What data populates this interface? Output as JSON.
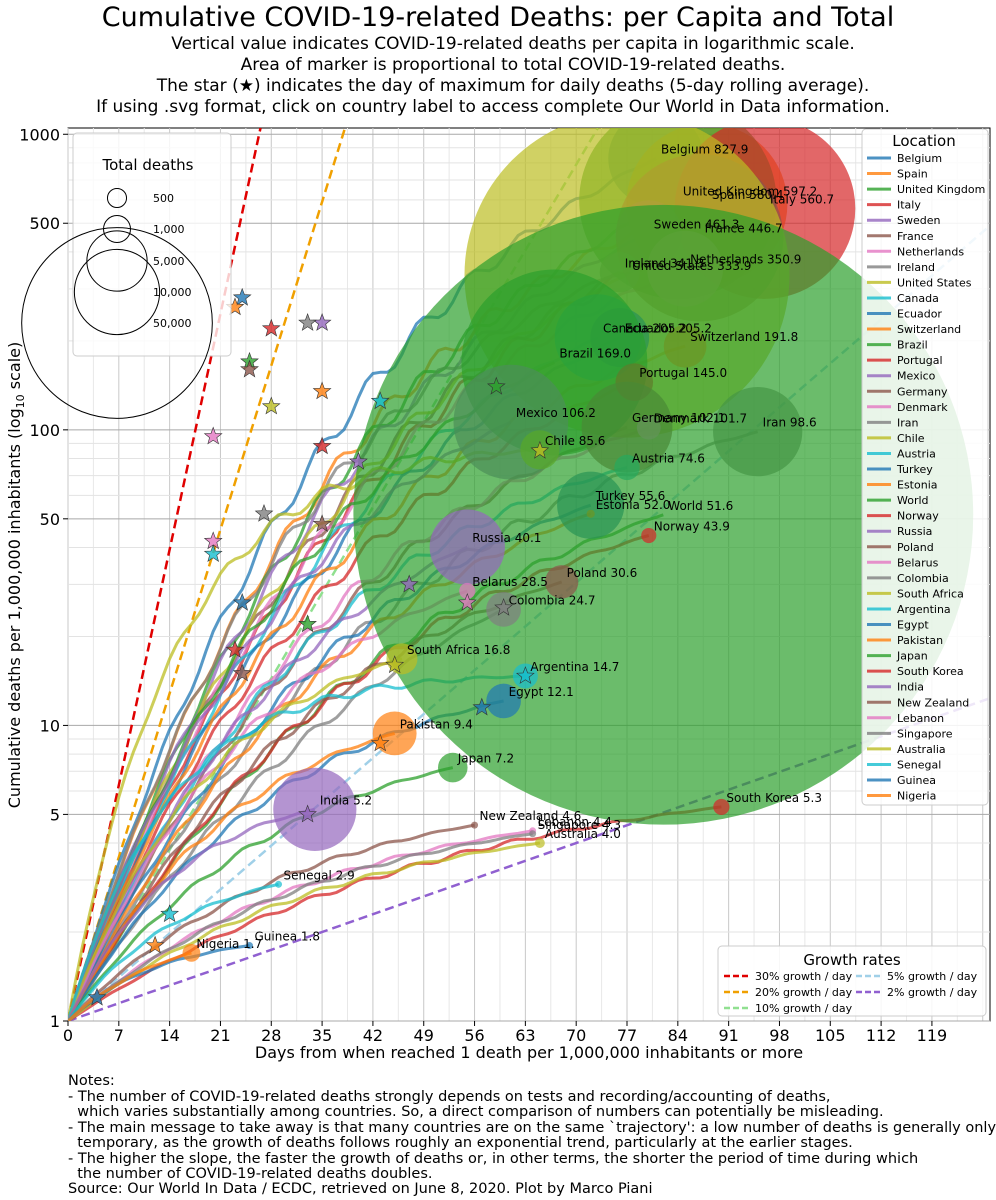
{
  "chart_data": {
    "type": "line",
    "title": "Cumulative COVID-19-related Deaths: per Capita and Total",
    "subtitle_lines": [
      "Vertical value indicates COVID-19-related deaths per capita in logarithmic scale.",
      "Area of marker is proportional to total COVID-19-related deaths.",
      "The star (★) indicates the day of maximum for daily deaths (5-day rolling average).",
      "If using .svg format, click on country label to access complete Our World in Data information."
    ],
    "xlabel": "Days from when reached 1 death per 1,000,000 inhabitants or more",
    "ylabel": "Cumulative deaths per 1,000,000 inhabitants (log",
    "ylabel_sub": "10",
    "ylabel_tail": " scale)",
    "yscale": "log",
    "xlim": [
      0,
      127
    ],
    "ylim": [
      1,
      1050
    ],
    "x_ticks": [
      0,
      7,
      14,
      21,
      28,
      35,
      42,
      49,
      56,
      63,
      70,
      77,
      84,
      91,
      98,
      105,
      112,
      119
    ],
    "y_ticks": [
      1,
      5,
      10,
      50,
      100,
      500,
      1000
    ],
    "grid": true,
    "size_legend": {
      "title": "Total deaths",
      "entries": [
        {
          "label": "500",
          "value": 500
        },
        {
          "label": "1,000",
          "value": 1000
        },
        {
          "label": "5,000",
          "value": 5000
        },
        {
          "label": "10,000",
          "value": 10000
        },
        {
          "label": "50,000",
          "value": 50000
        }
      ]
    },
    "location_legend_title": "Location",
    "series": [
      {
        "name": "Belgium",
        "color": "#1f77b4",
        "end": [
          81,
          827.9
        ],
        "total": 9500,
        "star": [
          24,
          280
        ],
        "label": "Belgium 827.9"
      },
      {
        "name": "Spain",
        "color": "#ff7f0e",
        "end": [
          88,
          580.4
        ],
        "total": 27000,
        "star": [
          23,
          260
        ],
        "label": "Spain 580.4"
      },
      {
        "name": "United Kingdom",
        "color": "#2ca02c",
        "end": [
          84,
          597.2
        ],
        "total": 40500,
        "star": [
          25,
          170
        ],
        "label": "United Kingdom 597.2"
      },
      {
        "name": "Italy",
        "color": "#d62728",
        "end": [
          96,
          560.7
        ],
        "total": 34000,
        "star": [
          28,
          220
        ],
        "label": "Italy 560.7"
      },
      {
        "name": "Sweden",
        "color": "#9467bd",
        "end": [
          80,
          461.3
        ],
        "total": 4600,
        "star": [
          35,
          230
        ],
        "label": "Sweden 461.3"
      },
      {
        "name": "France",
        "color": "#8c564b",
        "end": [
          87,
          446.7
        ],
        "total": 29200,
        "star": [
          25,
          160
        ],
        "label": "France 446.7"
      },
      {
        "name": "Netherlands",
        "color": "#e377c2",
        "end": [
          85,
          350.9
        ],
        "total": 6000,
        "star": [
          20,
          95
        ],
        "label": "Netherlands 350.9"
      },
      {
        "name": "Ireland",
        "color": "#7f7f7f",
        "end": [
          76,
          341.3
        ],
        "total": 1680,
        "star": [
          33,
          230
        ],
        "label": "Ireland 341.3"
      },
      {
        "name": "United States",
        "color": "#bcbd22",
        "end": [
          77,
          333.9
        ],
        "total": 110000,
        "star": [
          28,
          120
        ],
        "label": "United States 333.9"
      },
      {
        "name": "Canada",
        "color": "#17becf",
        "end": [
          73,
          205.2
        ],
        "total": 7800,
        "star": [
          43,
          125
        ],
        "label": "Canada 205.2"
      },
      {
        "name": "Ecuador",
        "color": "#1f77b4",
        "end": [
          76,
          205.2
        ],
        "total": 3600,
        "star": [
          0,
          0
        ],
        "label": "Ecuador 205.2"
      },
      {
        "name": "Switzerland",
        "color": "#ff7f0e",
        "end": [
          85,
          191.8
        ],
        "total": 1900,
        "star": [
          35,
          135
        ],
        "label": "Switzerland 191.8"
      },
      {
        "name": "Brazil",
        "color": "#2ca02c",
        "end": [
          67,
          169.0
        ],
        "total": 36000,
        "star": [
          59,
          140
        ],
        "label": "Brazil 169.0"
      },
      {
        "name": "Portugal",
        "color": "#d62728",
        "end": [
          78,
          145.0
        ],
        "total": 1470,
        "star": [
          35,
          88
        ],
        "label": "Portugal 145.0"
      },
      {
        "name": "Mexico",
        "color": "#9467bd",
        "end": [
          61,
          106.2
        ],
        "total": 13700,
        "star": [
          40,
          78
        ],
        "label": "Mexico 106.2"
      },
      {
        "name": "Germany",
        "color": "#8c564b",
        "end": [
          77,
          102.1
        ],
        "total": 8600,
        "star": [
          35,
          48
        ],
        "label": "Germany 102.1"
      },
      {
        "name": "Denmark",
        "color": "#e377c2",
        "end": [
          80,
          101.7
        ],
        "total": 590,
        "star": [
          20,
          42
        ],
        "label": "Denmark 101.7"
      },
      {
        "name": "Iran",
        "color": "#7f7f7f",
        "end": [
          95,
          98.6
        ],
        "total": 8300,
        "star": [
          27,
          52
        ],
        "label": "Iran 98.6"
      },
      {
        "name": "Chile",
        "color": "#bcbd22",
        "end": [
          65,
          85.6
        ],
        "total": 1600,
        "star": [
          65,
          85
        ],
        "label": "Chile 85.6"
      },
      {
        "name": "Austria",
        "color": "#17becf",
        "end": [
          77,
          74.6
        ],
        "total": 670,
        "star": [
          20,
          38
        ],
        "label": "Austria 74.6"
      },
      {
        "name": "Turkey",
        "color": "#1f77b4",
        "end": [
          72,
          55.6
        ],
        "total": 4700,
        "star": [
          24,
          26
        ],
        "label": "Turkey 55.6"
      },
      {
        "name": "Estonia",
        "color": "#ff7f0e",
        "end": [
          72,
          52.0
        ],
        "total": 69,
        "star": [
          0,
          0
        ],
        "label": "Estonia 52.0"
      },
      {
        "name": "World",
        "color": "#2ca02c",
        "end": [
          82,
          51.6
        ],
        "total": 400000,
        "star": [
          33,
          22
        ],
        "label": "World 51.6"
      },
      {
        "name": "Norway",
        "color": "#d62728",
        "end": [
          80,
          43.9
        ],
        "total": 238,
        "star": [
          23,
          18
        ],
        "label": "Norway 43.9"
      },
      {
        "name": "Russia",
        "color": "#9467bd",
        "end": [
          55,
          40.1
        ],
        "total": 5900,
        "star": [
          47,
          30
        ],
        "label": "Russia 40.1"
      },
      {
        "name": "Poland",
        "color": "#8c564b",
        "end": [
          68,
          30.6
        ],
        "total": 1160,
        "star": [
          24,
          15
        ],
        "label": "Poland 30.6"
      },
      {
        "name": "Belarus",
        "color": "#e377c2",
        "end": [
          55,
          28.5
        ],
        "total": 270,
        "star": [
          55,
          26
        ],
        "label": "Belarus 28.5"
      },
      {
        "name": "Colombia",
        "color": "#7f7f7f",
        "end": [
          60,
          24.7
        ],
        "total": 1260,
        "star": [
          60,
          25
        ],
        "label": "Colombia 24.7"
      },
      {
        "name": "South Africa",
        "color": "#bcbd22",
        "end": [
          46,
          16.8
        ],
        "total": 1000,
        "star": [
          45,
          16
        ],
        "label": "South Africa 16.8"
      },
      {
        "name": "Argentina",
        "color": "#17becf",
        "end": [
          63,
          14.7
        ],
        "total": 650,
        "star": [
          63,
          14.7
        ],
        "label": "Argentina 14.7"
      },
      {
        "name": "Egypt",
        "color": "#1f77b4",
        "end": [
          60,
          12.1
        ],
        "total": 1250,
        "star": [
          57,
          11.5
        ],
        "label": "Egypt 12.1"
      },
      {
        "name": "Pakistan",
        "color": "#ff7f0e",
        "end": [
          45,
          9.4
        ],
        "total": 2000,
        "star": [
          43,
          8.7
        ],
        "label": "Pakistan 9.4"
      },
      {
        "name": "Japan",
        "color": "#2ca02c",
        "end": [
          53,
          7.2
        ],
        "total": 910,
        "star": [
          0,
          0
        ],
        "label": "Japan 7.2"
      },
      {
        "name": "South Korea",
        "color": "#d62728",
        "end": [
          90,
          5.3
        ],
        "total": 273,
        "star": [
          0,
          0
        ],
        "label": "South Korea 5.3"
      },
      {
        "name": "India",
        "color": "#9467bd",
        "end": [
          34,
          5.2
        ],
        "total": 7200,
        "star": [
          33,
          5.0
        ],
        "label": "India 5.2"
      },
      {
        "name": "New Zealand",
        "color": "#8c564b",
        "end": [
          56,
          4.6
        ],
        "total": 22,
        "star": [
          0,
          0
        ],
        "label": "New Zealand 4.6"
      },
      {
        "name": "Lebanon",
        "color": "#e377c2",
        "end": [
          64,
          4.4
        ],
        "total": 30,
        "star": [
          0,
          0
        ],
        "label": "Lebanon 4.4"
      },
      {
        "name": "Singapore",
        "color": "#7f7f7f",
        "end": [
          64,
          4.3
        ],
        "total": 25,
        "star": [
          0,
          0
        ],
        "label": "Singapore 4.3"
      },
      {
        "name": "Australia",
        "color": "#bcbd22",
        "end": [
          65,
          4.0
        ],
        "total": 102,
        "star": [
          0,
          0
        ],
        "label": "Australia 4.0"
      },
      {
        "name": "Senegal",
        "color": "#17becf",
        "end": [
          29,
          2.9
        ],
        "total": 45,
        "star": [
          14,
          2.3
        ],
        "label": "Senegal 2.9"
      },
      {
        "name": "Guinea",
        "color": "#1f77b4",
        "end": [
          25,
          1.8
        ],
        "total": 23,
        "star": [
          4,
          1.2
        ],
        "label": "Guinea 1.8"
      },
      {
        "name": "Nigeria",
        "color": "#ff7f0e",
        "end": [
          17,
          1.7
        ],
        "total": 330,
        "star": [
          12,
          1.8
        ],
        "label": "Nigeria 1.7"
      }
    ],
    "growth_rates": {
      "title": "Growth rates",
      "lines": [
        {
          "label": "30% growth / day",
          "rate": 0.3,
          "color": "#e00000"
        },
        {
          "label": "20% growth / day",
          "rate": 0.2,
          "color": "#f0a000"
        },
        {
          "label": "10% growth / day",
          "rate": 0.1,
          "color": "#90e090"
        },
        {
          "label": "5% growth / day",
          "rate": 0.05,
          "color": "#a0d0e8"
        },
        {
          "label": "2% growth / day",
          "rate": 0.02,
          "color": "#9060d0"
        }
      ]
    }
  },
  "notes": [
    "Notes:",
    "- The number of COVID-19-related deaths strongly depends on tests and recording/accounting of deaths,",
    "  which varies substantially among countries. So, a direct comparison of numbers can potentially be misleading.",
    "- The main message to take away is that many countries are on the same `trajectory': a low number of deaths is generally only",
    "  temporary, as the growth of deaths follows roughly an exponential trend, particularly at the earlier stages.",
    "- The higher the slope, the faster the growth of deaths or, in other terms, the shorter the period of time during which",
    "  the number of COVID-19-related deaths doubles.",
    "Source: Our World In Data / ECDC, retrieved on June 8, 2020. Plot by Marco Piani"
  ]
}
